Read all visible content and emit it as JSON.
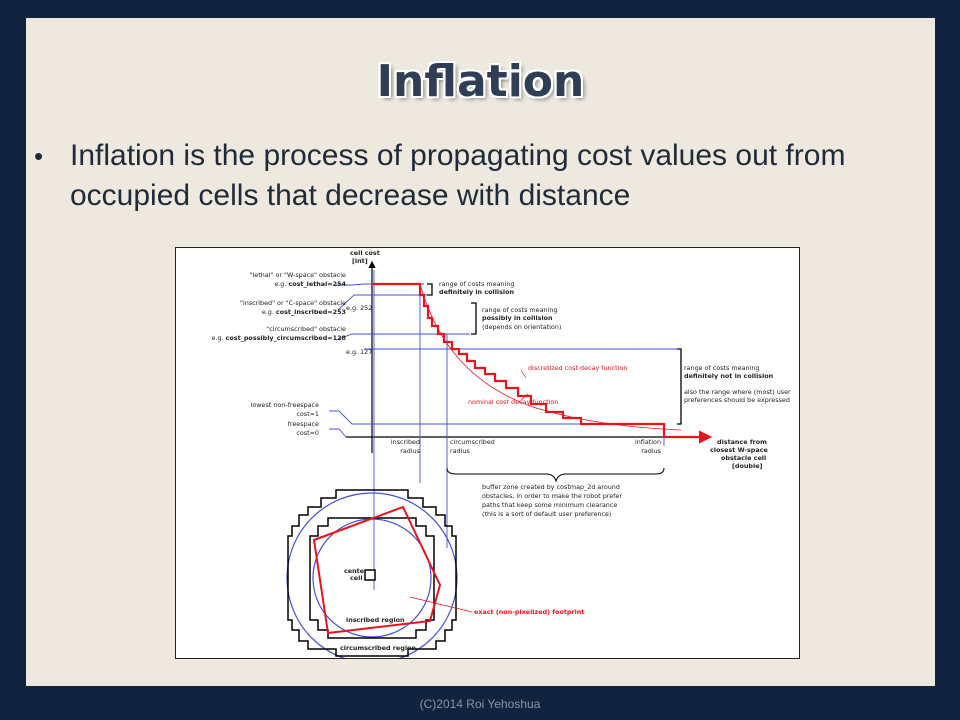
{
  "slide": {
    "title": "Inflation",
    "bullet": "Inflation is the process of propagating cost values out from occupied cells that decrease with distance",
    "footer": "(C)2014 Roi Yehoshua"
  },
  "diagram": {
    "y_axis_label_1": "cell cost",
    "y_axis_label_2": "[int]",
    "lethal_1": "\"lethal\" or \"W-space\" obstacle",
    "lethal_2_prefix": "e.g. ",
    "lethal_2_bold": "cost_lethal=254",
    "inscribed_1": "\"inscribed\" or \"C-space\" obstacle",
    "inscribed_2_prefix": "e.g. ",
    "inscribed_2_bold": "cost_inscribed=253",
    "eg252": "e.g. 252",
    "circumscribed_1": "\"circumscribed\" obstacle",
    "circumscribed_2_prefix": "e.g. ",
    "circumscribed_2_bold": "cost_possibly_circumscribed=128",
    "eg127": "e.g. 127",
    "lowest_1": "lowest non-freespace",
    "lowest_2": "cost=1",
    "freespace_1": "freespace",
    "freespace_2": "cost=0",
    "range1_1": "range of costs meaning",
    "range1_2": "definitely in collision",
    "range2_1": "range of costs meaning",
    "range2_2": "possibly in collision",
    "range2_3": "(depends on orientation)",
    "range3_1": "range of costs meaning",
    "range3_2": "definitely not in collision",
    "range3_3": "also the range where (most) user",
    "range3_4": "preferences should be expressed",
    "discretized": "discretized cost decay function",
    "nominal": "nominal cost decay function",
    "inscribed_radius_1": "inscribed",
    "inscribed_radius_2": "radius",
    "circumscribed_radius_1": "circumscribed",
    "circumscribed_radius_2": "radius",
    "inflation_radius_1": "inflation",
    "inflation_radius_2": "radius",
    "x_axis_1": "distance from",
    "x_axis_2": "closest W-space",
    "x_axis_3": "obstacle cell",
    "x_axis_4": "[double]",
    "buffer_1": "buffer zone created by costmap_2d around",
    "buffer_2": "obstacles, in order to make the robot prefer",
    "buffer_3": "paths that keep some minimum clearance",
    "buffer_4": "(this is a sort of default user preference)",
    "center_1": "center",
    "center_2": "cell",
    "footprint": "exact (non-pixelized) footprint",
    "inscribed_region": "inscribed region",
    "circumscribed_region": "circumscribed region",
    "colors": {
      "red": "#e8141c",
      "blue": "#4450d8",
      "black": "#000000"
    }
  }
}
